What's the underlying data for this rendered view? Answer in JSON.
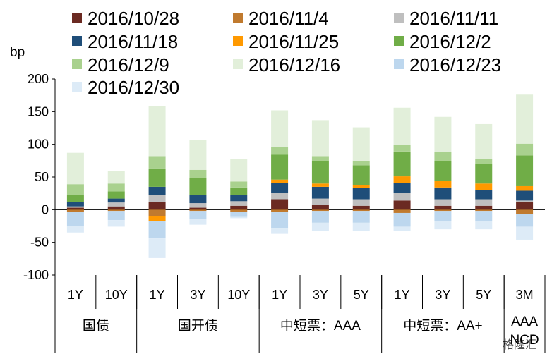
{
  "chart_data": {
    "type": "bar",
    "stacked": "diverging",
    "ylabel": "bp",
    "ylim": [
      -100,
      200
    ],
    "yticks": [
      -100,
      -50,
      0,
      50,
      100,
      150,
      200
    ],
    "grid": false,
    "legend_position": "top",
    "categories": [
      "1Y",
      "10Y",
      "1Y",
      "3Y",
      "10Y",
      "1Y",
      "3Y",
      "5Y",
      "1Y",
      "3Y",
      "5Y",
      "3M"
    ],
    "groups": [
      {
        "label": "国债",
        "count": 2
      },
      {
        "label": "国开债",
        "count": 3
      },
      {
        "label": "中短票：AAA",
        "count": 3
      },
      {
        "label": "中短票：AA+",
        "count": 3
      },
      {
        "label": "AAA\nNCD",
        "count": 1
      }
    ],
    "series": [
      {
        "name": "2016/10/28",
        "color": "#6b2a22",
        "values": [
          3,
          5,
          12,
          3,
          6,
          16,
          7,
          6,
          14,
          6,
          6,
          12
        ]
      },
      {
        "name": "2016/11/4",
        "color": "#c07a2e",
        "values": [
          -3,
          -2,
          -10,
          -2,
          -3,
          -4,
          -2,
          -2,
          -5,
          -2,
          -2,
          -7
        ]
      },
      {
        "name": "2016/11/11",
        "color": "#bfbfbf",
        "values": [
          2,
          6,
          10,
          7,
          7,
          10,
          10,
          10,
          12,
          10,
          10,
          2
        ]
      },
      {
        "name": "2016/11/18",
        "color": "#1f4e79",
        "values": [
          7,
          6,
          13,
          12,
          9,
          15,
          18,
          17,
          15,
          18,
          14,
          15
        ]
      },
      {
        "name": "2016/11/25",
        "color": "#ff9900",
        "values": [
          0,
          0,
          -7,
          0,
          0,
          5,
          5,
          5,
          10,
          10,
          10,
          7
        ]
      },
      {
        "name": "2016/12/2",
        "color": "#70ad47",
        "values": [
          11,
          11,
          28,
          26,
          12,
          38,
          34,
          30,
          38,
          30,
          30,
          47
        ]
      },
      {
        "name": "2016/12/9",
        "color": "#a9d18e",
        "values": [
          16,
          12,
          19,
          13,
          9,
          12,
          8,
          7,
          10,
          14,
          8,
          18
        ]
      },
      {
        "name": "2016/12/16",
        "color": "#e2efda",
        "values": [
          48,
          19,
          77,
          46,
          35,
          56,
          55,
          51,
          57,
          54,
          53,
          75
        ]
      },
      {
        "name": "2016/12/23",
        "color": "#bdd7ee",
        "values": [
          -22,
          -14,
          -27,
          -13,
          -8,
          -25,
          -18,
          -18,
          -21,
          -16,
          -16,
          -19
        ]
      },
      {
        "name": "2016/12/30",
        "color": "#ddebf7",
        "values": [
          -10,
          -10,
          -30,
          -8,
          -2,
          -8,
          -12,
          -12,
          -6,
          -12,
          -12,
          -20
        ]
      }
    ],
    "watermark": "格隆汇"
  }
}
